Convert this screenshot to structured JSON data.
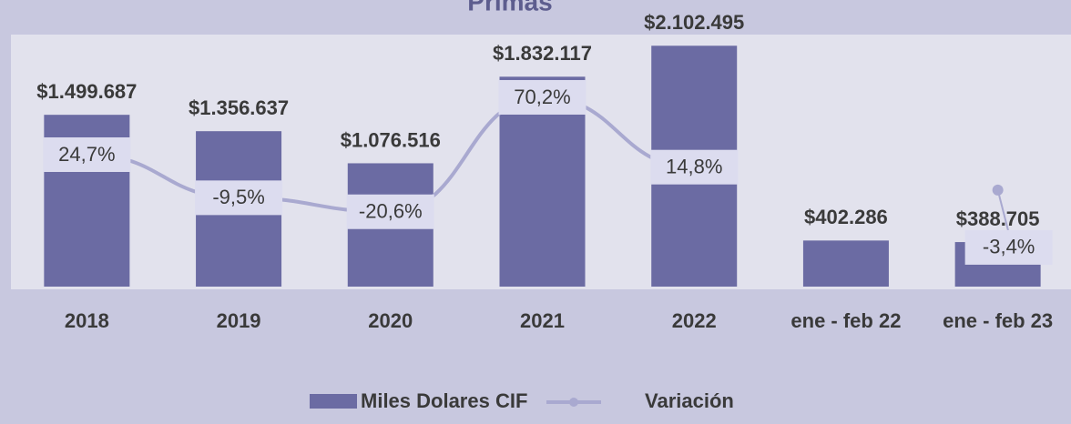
{
  "chart_data": {
    "type": "bar-line",
    "title": "Primas",
    "categories": [
      "2018",
      "2019",
      "2020",
      "2021",
      "2022",
      "ene - feb 22",
      "ene - feb 23"
    ],
    "ylim": [
      0,
      2200000
    ],
    "y2lim": [
      -80,
      120
    ],
    "series": [
      {
        "name": "Miles Dolares CIF",
        "type": "bar",
        "color": "#6b6ba3",
        "values": [
          1499687,
          1356637,
          1076516,
          1832117,
          2102495,
          402286,
          388705
        ],
        "value_labels": [
          "$1.499.687",
          "$1.356.637",
          "$1.076.516",
          "$1.832.117",
          "$2.102.495",
          "$402.286",
          "$388.705"
        ]
      },
      {
        "name": "Variación",
        "type": "line",
        "axis": "y2",
        "color": "#a9a9d0",
        "values": [
          24.7,
          -9.5,
          -20.6,
          70.2,
          14.8,
          null,
          -3.4
        ],
        "value_labels": [
          "24,7%",
          "-9,5%",
          "-20,6%",
          "70,2%",
          "14,8%",
          null,
          "-3,4%"
        ]
      }
    ]
  }
}
